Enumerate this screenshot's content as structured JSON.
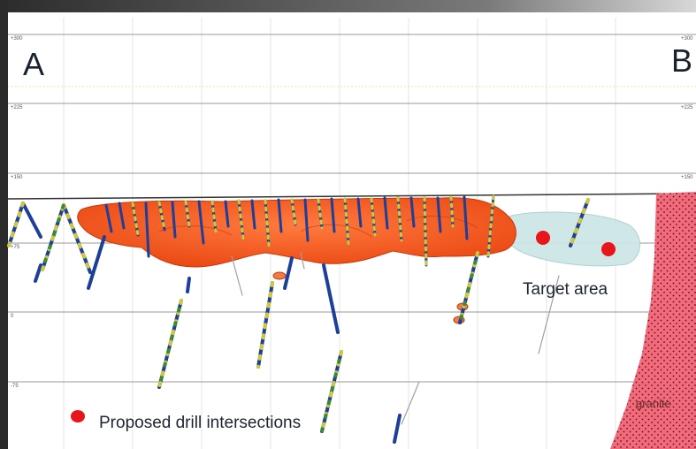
{
  "section": {
    "start_label": "A",
    "end_label": "B",
    "elevations": [
      "+300",
      "+225",
      "+150",
      "+75",
      "0",
      "-75"
    ],
    "target_label": "Target area",
    "granite_label": "granite",
    "legend_label": "Proposed drill intersections",
    "colors": {
      "orebody": "#f0521c",
      "target_zone": "#cde6e6",
      "granite": "#f26b7a",
      "proposed_point": "#e8151b",
      "drillhole": "#1d3f9a",
      "grid": "#9a9a9a"
    }
  }
}
